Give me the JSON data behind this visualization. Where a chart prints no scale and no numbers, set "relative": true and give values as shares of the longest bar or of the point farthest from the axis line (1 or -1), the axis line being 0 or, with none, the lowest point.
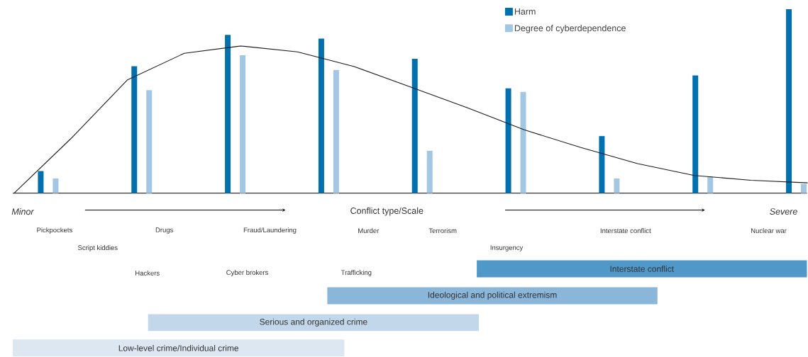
{
  "chart_data": [
    {
      "type": "bar",
      "relative": true,
      "xlabel": "Conflict type/Scale",
      "categories": [
        null,
        null,
        null,
        null,
        null,
        null,
        null,
        null,
        null
      ],
      "series": [
        {
          "name": "Harm",
          "color": "#0070ae",
          "values": [
            0.12,
            0.69,
            0.86,
            0.84,
            0.73,
            0.57,
            0.31,
            0.64,
            1.0
          ]
        },
        {
          "name": "Degree of cyberdependence",
          "color": "#a3c6e3",
          "values": [
            0.08,
            0.56,
            0.75,
            0.67,
            0.23,
            0.55,
            0.08,
            0.09,
            0.05
          ]
        }
      ],
      "legend": "top right",
      "annotations": [
        "Minor",
        "Severe",
        "Pickpockets",
        "Script kiddies",
        "Drugs",
        "Hackers",
        "Fraud/Laundering",
        "Cyber brokers",
        "Murder",
        "Trafficking",
        "Terrorism",
        "Insurgency",
        "Interstate conflict",
        "Nuclear war",
        "Interstate conflict",
        "Ideological and political extremism",
        "Serious and organized crime",
        "Low-level crime/Individual crime"
      ]
    },
    {
      "type": "line",
      "relative": true,
      "categories": [
        null,
        null,
        null,
        null,
        null,
        null,
        null,
        null,
        null,
        null,
        null,
        null,
        null,
        null,
        null
      ],
      "series": [
        {
          "color": "#1a1a1a",
          "values": [
            0,
            0.37,
            0.77,
            0.95,
            1.0,
            0.96,
            0.86,
            0.72,
            0.58,
            0.43,
            0.31,
            0.2,
            0.12,
            0.087,
            0.07
          ]
        }
      ]
    }
  ]
}
